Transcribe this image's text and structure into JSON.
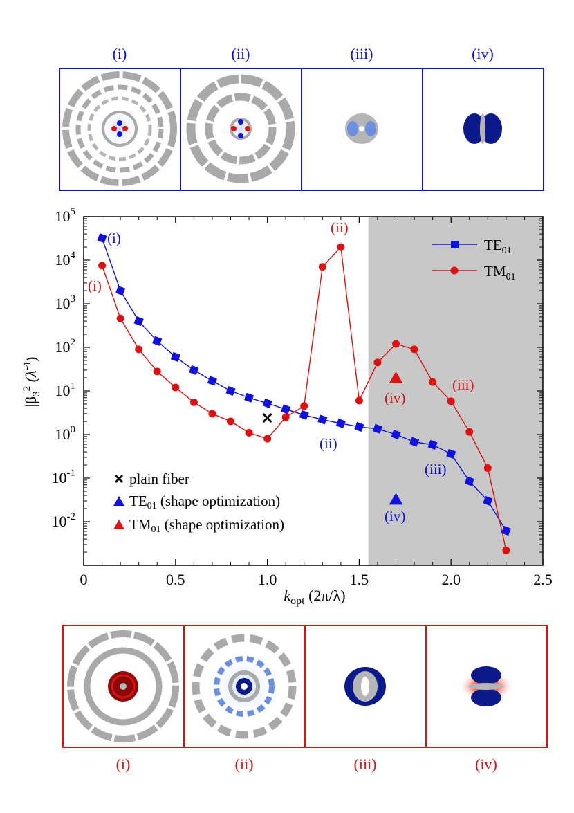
{
  "colors": {
    "te": "#1010e0",
    "tm": "#e01010",
    "shade": "#c8c8c8",
    "panel_gray": "#a9a9a9"
  },
  "top_panels": {
    "labels": [
      "(i)",
      "(ii)",
      "(iii)",
      "(iv)"
    ]
  },
  "bottom_panels": {
    "labels": [
      "(i)",
      "(ii)",
      "(iii)",
      "(iv)"
    ]
  },
  "chart_data": {
    "type": "line",
    "title": "",
    "xlabel_main": "k",
    "xlabel_sub": "opt",
    "xlabel_rest": " (2π/λ)",
    "ylabel_main": "|β",
    "ylabel_sub": "3",
    "ylabel_sup": "2",
    "ylabel_rest": " (λ",
    "ylabel_exp": "-4",
    "ylabel_close": ")",
    "xlim": [
      0,
      2.5
    ],
    "ylim_log10": [
      -3,
      5
    ],
    "x_ticks": [
      0,
      0.5,
      1.0,
      1.5,
      2.0,
      2.5
    ],
    "x_tick_labels": [
      "0",
      "0.5",
      "1.0",
      "1.5",
      "2.0",
      "2.5"
    ],
    "y_ticks_exp": [
      5,
      4,
      3,
      2,
      1,
      0,
      -1,
      -2
    ],
    "y_tick_base": "10",
    "y_tick_exps": [
      "5",
      "4",
      "3",
      "2",
      "1",
      "0",
      "-1",
      "-2"
    ],
    "shaded_region_x": [
      1.55,
      2.5
    ],
    "series": [
      {
        "name": "TE",
        "name_sub": "01",
        "marker": "square",
        "x": [
          0.1,
          0.2,
          0.3,
          0.4,
          0.5,
          0.6,
          0.7,
          0.8,
          0.9,
          1.0,
          1.1,
          1.2,
          1.3,
          1.4,
          1.5,
          1.6,
          1.7,
          1.8,
          1.9,
          2.0,
          2.1,
          2.2,
          2.3
        ],
        "y": [
          32000,
          2000,
          400,
          140,
          60,
          30,
          17,
          10,
          7,
          5.2,
          3.8,
          2.8,
          2.2,
          1.8,
          1.5,
          1.35,
          1.0,
          0.68,
          0.58,
          0.36,
          0.085,
          0.03,
          0.0062
        ]
      },
      {
        "name": "TM",
        "name_sub": "01",
        "marker": "circle",
        "x": [
          0.1,
          0.2,
          0.3,
          0.4,
          0.5,
          0.6,
          0.7,
          0.8,
          0.9,
          1.0,
          1.1,
          1.2,
          1.3,
          1.4,
          1.5,
          1.6,
          1.7,
          1.8,
          1.9,
          2.0,
          2.1,
          2.2,
          2.3
        ],
        "y": [
          7500,
          460,
          90,
          28,
          12,
          5.5,
          3.0,
          2.0,
          1.1,
          0.8,
          2.5,
          4.5,
          7000,
          20000,
          6.0,
          45,
          120,
          90,
          16,
          5.8,
          1.15,
          0.17,
          0.0022
        ]
      }
    ],
    "special_points": [
      {
        "name": "plain fiber",
        "marker": "x",
        "x": 1.0,
        "y": 2.4
      },
      {
        "name": "TE",
        "name_sub": "01",
        "name_rest": " (shape optimization)",
        "marker": "triangle",
        "series": "te",
        "x": 1.7,
        "y": 0.033
      },
      {
        "name": "TM",
        "name_sub": "01",
        "name_rest": " (shape optimization)",
        "marker": "triangle",
        "series": "tm",
        "x": 1.7,
        "y": 20
      }
    ],
    "annotations": [
      {
        "text": "(i)",
        "series": "te"
      },
      {
        "text": "(i)",
        "series": "tm"
      },
      {
        "text": "(ii)",
        "series": "tm"
      },
      {
        "text": "(ii)",
        "series": "te"
      },
      {
        "text": "(iii)",
        "series": "tm"
      },
      {
        "text": "(iii)",
        "series": "te"
      },
      {
        "text": "(iv)",
        "series": "tm"
      },
      {
        "text": "(iv)",
        "series": "te"
      }
    ]
  }
}
